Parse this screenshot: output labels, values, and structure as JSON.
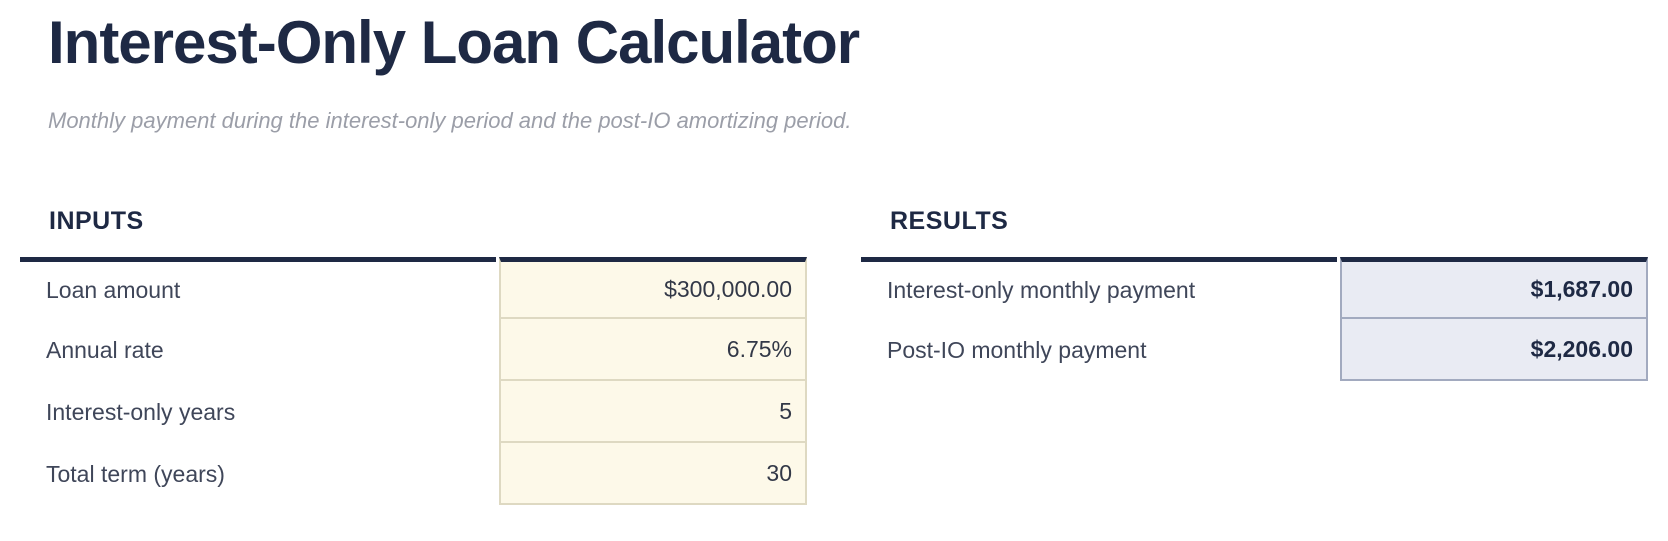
{
  "header": {
    "title": "Interest-Only Loan Calculator",
    "subtitle": "Monthly payment during the interest-only period and the post-IO amortizing period."
  },
  "inputs": {
    "heading": "INPUTS",
    "rows": [
      {
        "label": "Loan amount",
        "value": "$300,000.00"
      },
      {
        "label": "Annual rate",
        "value": "6.75%"
      },
      {
        "label": "Interest-only years",
        "value": "5"
      },
      {
        "label": "Total term (years)",
        "value": "30"
      }
    ]
  },
  "results": {
    "heading": "RESULTS",
    "rows": [
      {
        "label": "Interest-only monthly payment",
        "value": "$1,687.00"
      },
      {
        "label": "Post-IO monthly payment",
        "value": "$2,206.00"
      }
    ]
  },
  "colors": {
    "heading_navy": "#1e2944",
    "label_text": "#3f4659",
    "subtitle_text": "#9b9ea8",
    "input_cell_bg": "#fdf9e9",
    "input_cell_border": "#ded9c2",
    "input_value_text": "#323847",
    "result_cell_bg": "#e9ebf3",
    "result_cell_border": "#a2aabf",
    "result_value_text": "#1e2944"
  }
}
